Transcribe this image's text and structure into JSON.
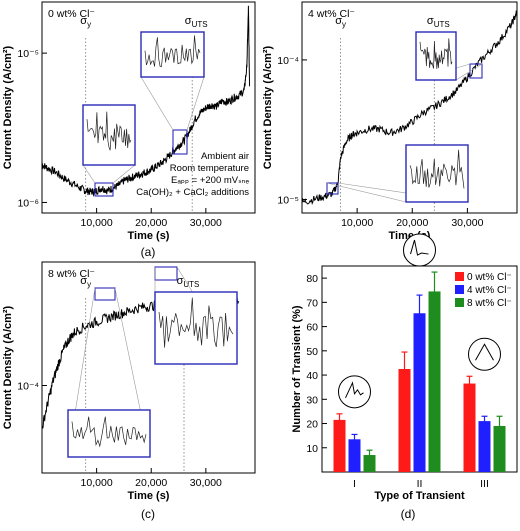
{
  "chart_data": [
    {
      "panel": "(a)",
      "type": "line",
      "condition_label": "0 wt% Cl⁻",
      "xlabel": "Time (s)",
      "ylabel": "Current Density (A/cm²)",
      "x_ticks": [
        "10,000",
        "20,000",
        "30,000"
      ],
      "y_scale": "log",
      "y_ticks": [
        "10⁻⁶",
        "10⁻⁵"
      ],
      "xlim": [
        0,
        39000
      ],
      "ylim": [
        8.5e-07,
        2.2e-05
      ],
      "markers": [
        {
          "label": "σy",
          "x": 8000
        },
        {
          "label": "σUTS",
          "x": 27500
        }
      ],
      "annotations": [
        "Ambient air",
        "Room temperature",
        "Eₐₚₚ = +200 mVₛₙₑ",
        "Ca(OH)₂ + CaCl₂ additions"
      ],
      "series": [
        {
          "points": [
            [
              0,
              1.8e-06
            ],
            [
              1000,
              1.7e-06
            ],
            [
              2500,
              1.6e-06
            ],
            [
              4000,
              1.45e-06
            ],
            [
              5500,
              1.35e-06
            ],
            [
              7000,
              1.25e-06
            ],
            [
              8000,
              1.2e-06
            ],
            [
              9000,
              1.18e-06
            ],
            [
              10000,
              1.2e-06
            ],
            [
              11000,
              1.25e-06
            ],
            [
              12000,
              1.2e-06
            ],
            [
              13000,
              1.25e-06
            ],
            [
              14000,
              1.3e-06
            ],
            [
              15000,
              1.4e-06
            ],
            [
              16000,
              1.45e-06
            ],
            [
              17000,
              1.5e-06
            ],
            [
              18000,
              1.55e-06
            ],
            [
              19000,
              1.6e-06
            ],
            [
              20000,
              1.65e-06
            ],
            [
              21000,
              1.75e-06
            ],
            [
              22000,
              1.85e-06
            ],
            [
              23000,
              2e-06
            ],
            [
              24000,
              2.2e-06
            ],
            [
              25000,
              2.4e-06
            ],
            [
              26000,
              2.6e-06
            ],
            [
              27000,
              3e-06
            ],
            [
              28000,
              3.6e-06
            ],
            [
              29000,
              4e-06
            ],
            [
              30000,
              4.3e-06
            ],
            [
              31000,
              4.5e-06
            ],
            [
              32000,
              4.4e-06
            ],
            [
              33000,
              4.8e-06
            ],
            [
              34000,
              4.7e-06
            ],
            [
              35000,
              5e-06
            ],
            [
              36000,
              5.2e-06
            ],
            [
              37000,
              5.6e-06
            ],
            [
              37500,
              8e-06
            ],
            [
              37800,
              2e-05
            ],
            [
              38000,
              6e-06
            ]
          ]
        }
      ]
    },
    {
      "panel": "(b)",
      "type": "line",
      "condition_label": "4 wt% Cl⁻",
      "xlabel": "Time (s)",
      "ylabel": "Current Density (A/cm²)",
      "x_ticks": [
        "10,000",
        "20,000",
        "30,000"
      ],
      "y_scale": "log",
      "y_ticks": [
        "10⁻⁵",
        "10⁻⁴"
      ],
      "xlim": [
        0,
        39000
      ],
      "ylim": [
        8e-06,
        0.00026
      ],
      "markers": [
        {
          "label": "σy",
          "x": 7000
        },
        {
          "label": "σUTS",
          "x": 24000
        }
      ],
      "series": [
        {
          "points": [
            [
              0,
              9.5e-06
            ],
            [
              2000,
              1e-05
            ],
            [
              4000,
              1.05e-05
            ],
            [
              5500,
              1.1e-05
            ],
            [
              6500,
              1.3e-05
            ],
            [
              7000,
              2e-05
            ],
            [
              8000,
              2.6e-05
            ],
            [
              9000,
              2.9e-05
            ],
            [
              10000,
              3e-05
            ],
            [
              12000,
              3.2e-05
            ],
            [
              14000,
              3.2e-05
            ],
            [
              16000,
              3e-05
            ],
            [
              18000,
              3.2e-05
            ],
            [
              20000,
              3.6e-05
            ],
            [
              22000,
              4.2e-05
            ],
            [
              24000,
              4.6e-05
            ],
            [
              26000,
              5.2e-05
            ],
            [
              28000,
              6e-05
            ],
            [
              30000,
              7.5e-05
            ],
            [
              32000,
              9.5e-05
            ],
            [
              34000,
              0.000115
            ],
            [
              36000,
              0.00014
            ],
            [
              38000,
              0.00018
            ],
            [
              39000,
              0.00022
            ]
          ]
        }
      ]
    },
    {
      "panel": "(c)",
      "type": "line",
      "condition_label": "8 wt% Cl⁻",
      "xlabel": "Time (s)",
      "ylabel": "Current Density (A/cm²)",
      "x_ticks": [
        "10,000",
        "20,000",
        "30,000"
      ],
      "y_scale": "log",
      "y_ticks": [
        "10⁻⁴"
      ],
      "xlim": [
        0,
        39000
      ],
      "ylim": [
        3.5e-05,
        0.00044
      ],
      "markers": [
        {
          "label": "σy",
          "x": 8000
        },
        {
          "label": "σUTS",
          "x": 26000
        }
      ],
      "series": [
        {
          "points": [
            [
              0,
              6e-05
            ],
            [
              1000,
              8e-05
            ],
            [
              2000,
              0.000105
            ],
            [
              3000,
              0.00013
            ],
            [
              4000,
              0.000155
            ],
            [
              5000,
              0.000175
            ],
            [
              6000,
              0.00019
            ],
            [
              8000,
              0.000205
            ],
            [
              10000,
              0.000215
            ],
            [
              12000,
              0.000225
            ],
            [
              14000,
              0.000235
            ],
            [
              16000,
              0.000245
            ],
            [
              18000,
              0.000255
            ],
            [
              20000,
              0.00026
            ],
            [
              22000,
              0.000265
            ],
            [
              24000,
              0.00027
            ],
            [
              26000,
              0.00027
            ],
            [
              28000,
              0.00027
            ],
            [
              30000,
              0.000275
            ],
            [
              32000,
              0.000275
            ],
            [
              34000,
              0.00027
            ],
            [
              36000,
              0.000275
            ]
          ]
        }
      ]
    },
    {
      "panel": "(d)",
      "type": "bar",
      "xlabel": "Type of Transient",
      "ylabel": "Number of Transient (%)",
      "categories": [
        "I",
        "II",
        "III"
      ],
      "ylim": [
        0,
        85
      ],
      "y_ticks": [
        10,
        20,
        30,
        40,
        50,
        60,
        70,
        80
      ],
      "legend_position": "top-right",
      "series": [
        {
          "name": "0 wt% Cl⁻",
          "color": "#ff1a1a",
          "values": [
            21.5,
            42.5,
            36.5
          ],
          "errors": [
            2.5,
            7.0,
            3.0
          ]
        },
        {
          "name": "4 wt% Cl⁻",
          "color": "#1f1fff",
          "values": [
            13.5,
            65.5,
            21.0
          ],
          "errors": [
            2.0,
            7.5,
            2.0
          ]
        },
        {
          "name": "8 wt% Cl⁻",
          "color": "#1e8c1e",
          "values": [
            7.0,
            74.5,
            19.0
          ],
          "errors": [
            2.0,
            8.0,
            4.0
          ]
        }
      ]
    }
  ]
}
